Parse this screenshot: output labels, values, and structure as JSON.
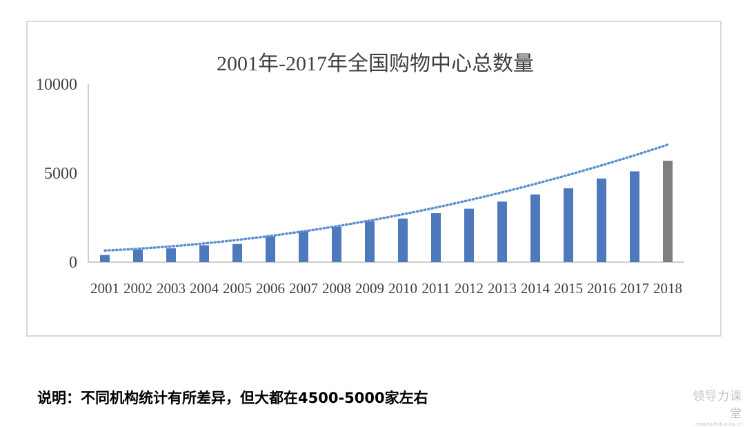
{
  "chart_data": {
    "type": "bar",
    "title": "2001年-2017年全国购物中心总数量",
    "categories": [
      "2001",
      "2002",
      "2003",
      "2004",
      "2005",
      "2006",
      "2007",
      "2008",
      "2009",
      "2010",
      "2011",
      "2012",
      "2013",
      "2014",
      "2015",
      "2016",
      "2017",
      "2018"
    ],
    "values": [
      400,
      700,
      780,
      950,
      1020,
      1450,
      1750,
      1980,
      2300,
      2450,
      2750,
      3000,
      3400,
      3800,
      4150,
      4700,
      5100,
      5700
    ],
    "series_colors": [
      "#4e79bd",
      "#4e79bd",
      "#4e79bd",
      "#4e79bd",
      "#4e79bd",
      "#4e79bd",
      "#4e79bd",
      "#4e79bd",
      "#4e79bd",
      "#4e79bd",
      "#4e79bd",
      "#4e79bd",
      "#4e79bd",
      "#4e79bd",
      "#4e79bd",
      "#4e79bd",
      "#4e79bd",
      "#7f7f7f"
    ],
    "trendline": {
      "type": "polynomial",
      "style": "dotted",
      "color": "#5b8fd0",
      "from": 650,
      "to": 6600
    },
    "ylim": [
      0,
      10000
    ],
    "yticks": [
      "0",
      "5000",
      "10000"
    ],
    "grid": false,
    "xlabel": "",
    "ylabel": ""
  },
  "caption": "说明：不同机构统计有所差异，但大都在4500-5000家左右",
  "watermark": {
    "main": "领导力课堂",
    "sub": "eovolsidhdua.og.cn"
  }
}
